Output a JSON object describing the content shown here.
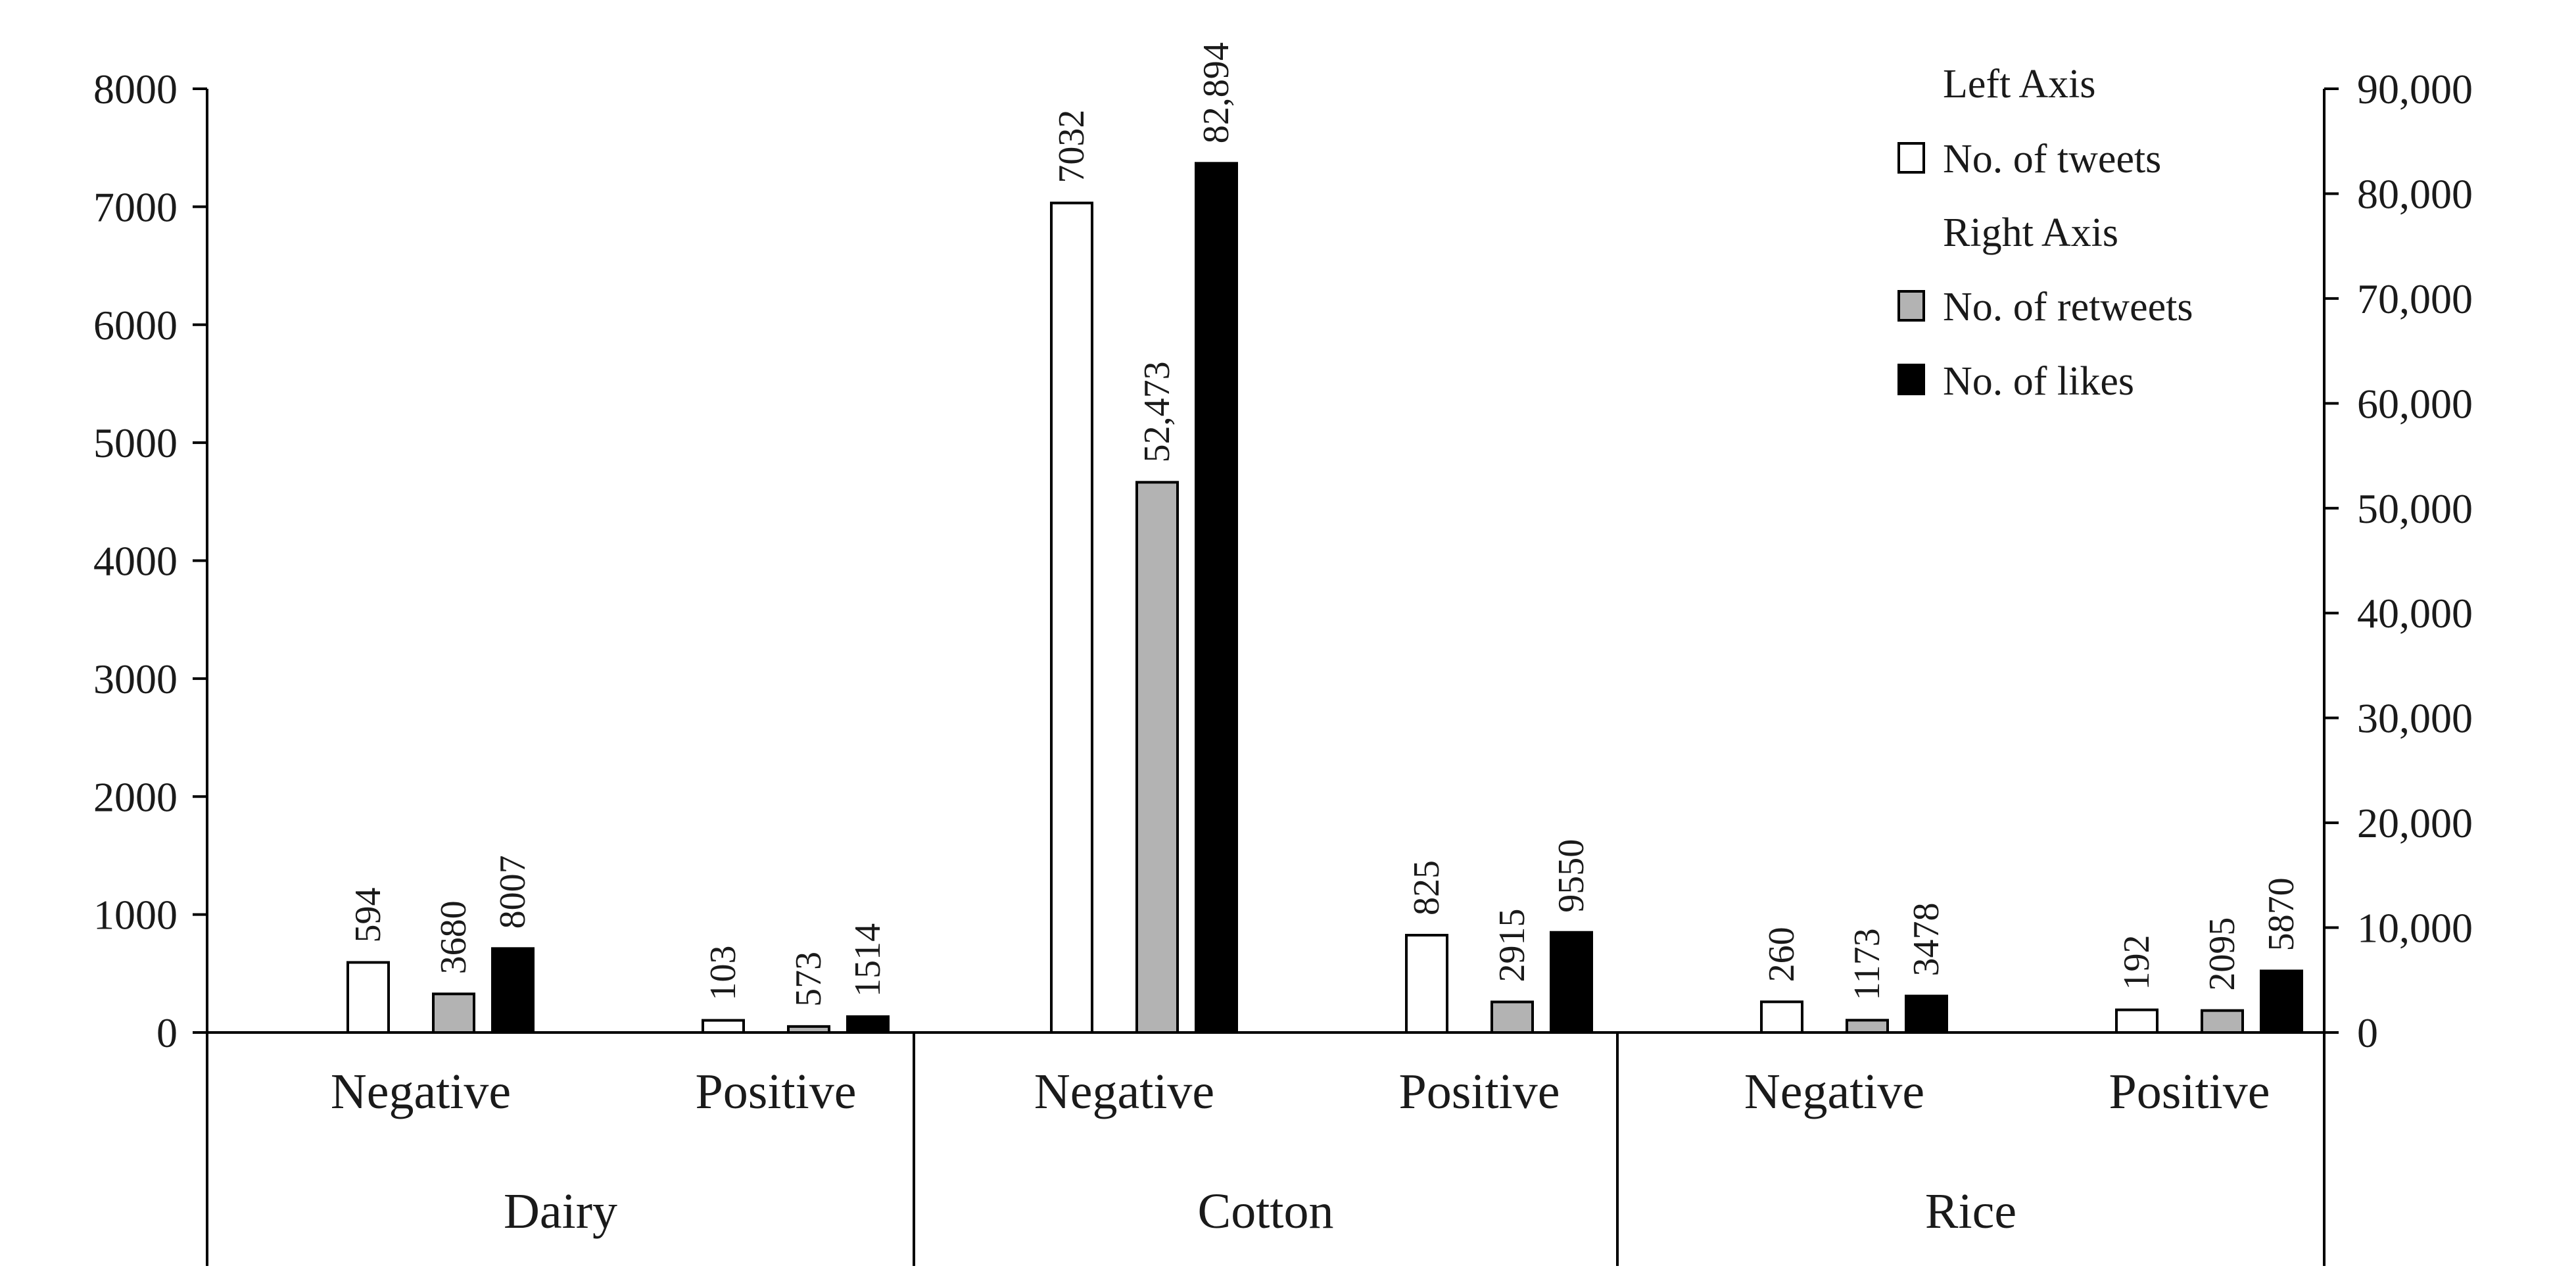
{
  "chart_data": {
    "type": "bar",
    "groups": [
      {
        "name": "Dairy",
        "subcategories": [
          "Negative",
          "Positive"
        ]
      },
      {
        "name": "Cotton",
        "subcategories": [
          "Negative",
          "Positive"
        ]
      },
      {
        "name": "Rice",
        "subcategories": [
          "Negative",
          "Positive"
        ]
      }
    ],
    "series": [
      {
        "name": "No. of tweets",
        "axis": "left",
        "fill": "#ffffff",
        "values": [
          594,
          103,
          7032,
          825,
          260,
          192
        ],
        "labels": [
          "594",
          "103",
          "7032",
          "825",
          "260",
          "192"
        ]
      },
      {
        "name": "No. of retweets",
        "axis": "right",
        "fill": "#b3b3b3",
        "values": [
          3680,
          573,
          52473,
          2915,
          1173,
          2095
        ],
        "labels": [
          "3680",
          "573",
          "52,473",
          "2915",
          "1173",
          "2095"
        ]
      },
      {
        "name": "No. of likes",
        "axis": "right",
        "fill": "#000000",
        "values": [
          8007,
          1514,
          82894,
          9550,
          3478,
          5870
        ],
        "labels": [
          "8007",
          "1514",
          "82,894",
          "9550",
          "3478",
          "5870"
        ]
      }
    ],
    "left_axis": {
      "ylim": [
        0,
        8000
      ],
      "ticks": [
        "0",
        "1000",
        "2000",
        "3000",
        "4000",
        "5000",
        "6000",
        "7000",
        "8000"
      ]
    },
    "right_axis": {
      "ylim": [
        0,
        90000
      ],
      "ticks": [
        "0",
        "10,000",
        "20,000",
        "30,000",
        "40,000",
        "50,000",
        "60,000",
        "70,000",
        "80,000",
        "90,000"
      ]
    },
    "legend": {
      "placement": "top-right",
      "left_header": "Left Axis",
      "right_header": "Right Axis"
    },
    "grid": false
  }
}
